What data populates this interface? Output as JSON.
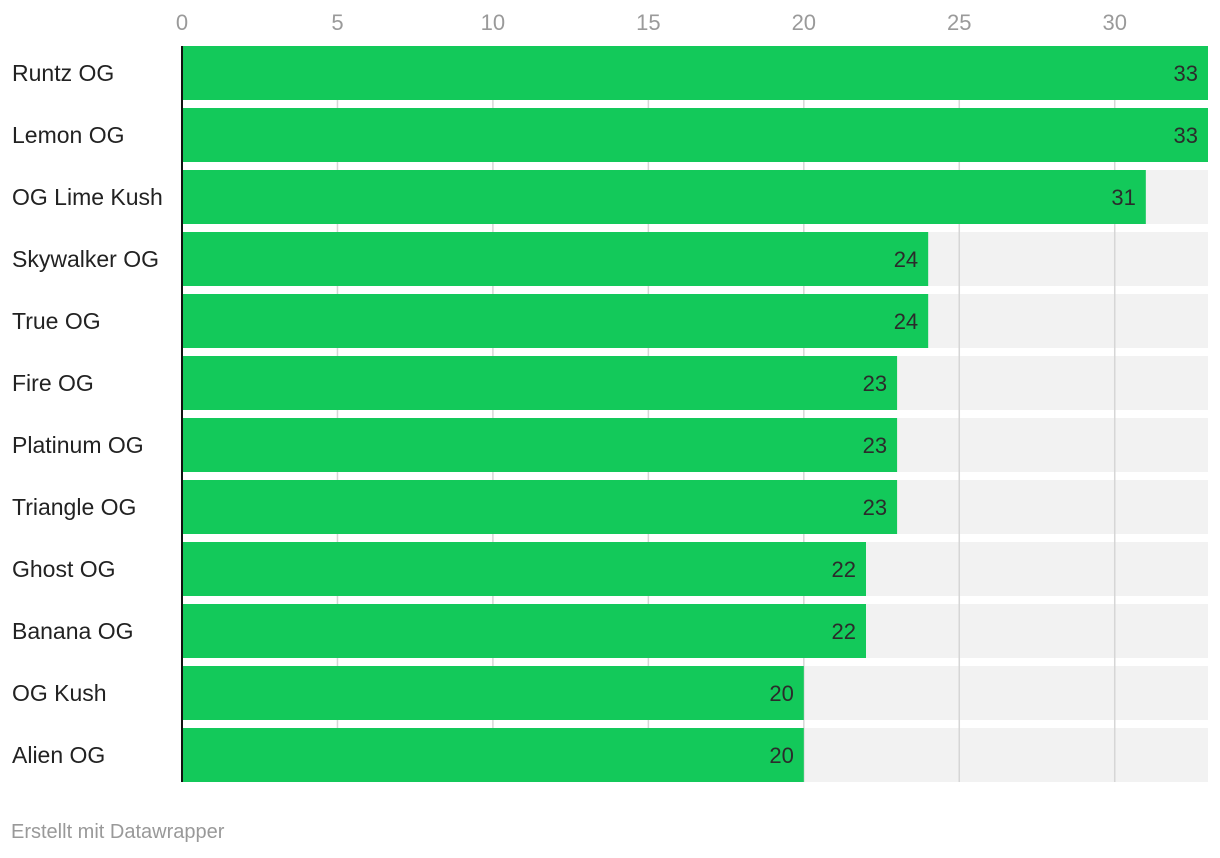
{
  "chart_data": {
    "type": "bar",
    "orientation": "horizontal",
    "categories": [
      "Runtz OG",
      "Lemon OG",
      "OG Lime Kush",
      "Skywalker OG",
      "True OG",
      "Fire OG",
      "Platinum OG",
      "Triangle OG",
      "Ghost OG",
      "Banana OG",
      "OG Kush",
      "Alien OG"
    ],
    "values": [
      33,
      33,
      31,
      24,
      24,
      23,
      23,
      23,
      22,
      22,
      20,
      20
    ],
    "xlim": [
      0,
      33
    ],
    "xticks": [
      0,
      5,
      10,
      15,
      20,
      25,
      30
    ],
    "title": "",
    "xlabel": "",
    "ylabel": "",
    "grid": true,
    "axis_position": "top",
    "bar_color": "#13c95a",
    "track_color": "#f2f2f2"
  },
  "footer": {
    "credit": "Erstellt mit Datawrapper"
  }
}
